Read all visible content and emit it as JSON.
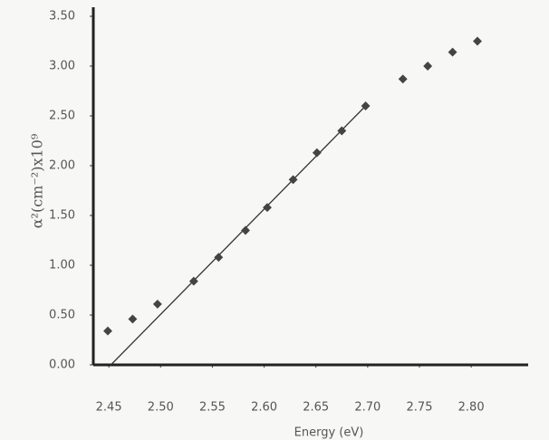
{
  "chart_data": {
    "type": "scatter",
    "x_label": "Energy (eV)",
    "y_label": "α²(cm⁻²)x10⁹",
    "x": [
      2.449,
      2.473,
      2.497,
      2.532,
      2.556,
      2.582,
      2.603,
      2.628,
      2.651,
      2.675,
      2.698,
      2.734,
      2.758,
      2.782,
      2.806
    ],
    "values": [
      0.34,
      0.46,
      0.61,
      0.84,
      1.08,
      1.35,
      1.58,
      1.86,
      2.13,
      2.35,
      2.6,
      2.87,
      3.0,
      3.14,
      3.25
    ],
    "color": "#444444",
    "fit_line": {
      "x": [
        2.452,
        2.698
      ],
      "y": [
        0,
        2.6
      ],
      "color": "#333333"
    },
    "xlim": [
      2.435,
      2.855
    ],
    "ylim": [
      0,
      3.5
    ],
    "xticks": [
      2.45,
      {
        "value": 2.5,
        "label": "2.50"
      },
      2.55,
      {
        "value": 2.6,
        "label": "2.60"
      },
      2.65,
      {
        "value": 2.7,
        "label": "2.70"
      },
      2.75,
      {
        "value": 2.8,
        "label": "2.80"
      }
    ],
    "yticks": [
      {
        "value": 0,
        "label": "0.00"
      },
      {
        "value": 0.5,
        "label": "0.50"
      },
      {
        "value": 1,
        "label": "1.00"
      },
      {
        "value": 1.5,
        "label": "1.50"
      },
      {
        "value": 2,
        "label": "2.00"
      },
      {
        "value": 2.5,
        "label": "2.50"
      },
      {
        "value": 3,
        "label": "3.00"
      },
      {
        "value": 3.5,
        "label": "3.50"
      }
    ],
    "grid": false
  }
}
